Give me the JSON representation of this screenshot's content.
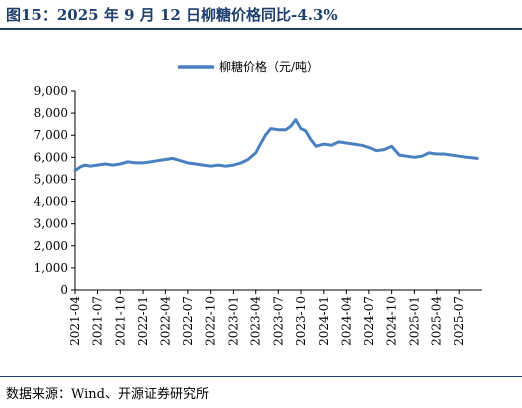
{
  "figure": {
    "title": "图15：2025 年 9 月 12 日柳糖价格同比-4.3%",
    "source": "数据来源：Wind、开源证券研究所"
  },
  "chart_data": {
    "type": "line",
    "title": "",
    "xlabel": "",
    "ylabel": "",
    "ylim": [
      0,
      9000
    ],
    "y_ticks": [
      "0",
      "1,000",
      "2,000",
      "3,000",
      "4,000",
      "5,000",
      "6,000",
      "7,000",
      "8,000",
      "9,000"
    ],
    "x_ticks": [
      "2021-04",
      "2021-07",
      "2021-10",
      "2022-01",
      "2022-04",
      "2022-07",
      "2022-10",
      "2023-01",
      "2023-04",
      "2023-07",
      "2023-10",
      "2024-01",
      "2024-04",
      "2024-07",
      "2024-10",
      "2025-01",
      "2025-04",
      "2025-07"
    ],
    "legend_position": "top-center",
    "grid": false,
    "series": [
      {
        "name": "柳糖价格（元/吨）",
        "color": "#4a7fc1",
        "x": [
          "2021-04-01",
          "2021-04-20",
          "2021-05-10",
          "2021-06-01",
          "2021-07-01",
          "2021-08-01",
          "2021-09-01",
          "2021-10-01",
          "2021-11-01",
          "2021-12-01",
          "2022-01-01",
          "2022-02-01",
          "2022-03-01",
          "2022-04-01",
          "2022-05-01",
          "2022-06-01",
          "2022-07-01",
          "2022-08-01",
          "2022-09-01",
          "2022-10-01",
          "2022-11-01",
          "2022-12-01",
          "2023-01-01",
          "2023-02-01",
          "2023-03-01",
          "2023-04-01",
          "2023-04-20",
          "2023-05-10",
          "2023-06-01",
          "2023-07-01",
          "2023-08-01",
          "2023-08-20",
          "2023-09-10",
          "2023-10-01",
          "2023-10-20",
          "2023-11-10",
          "2023-12-01",
          "2024-01-01",
          "2024-02-01",
          "2024-03-01",
          "2024-04-01",
          "2024-05-01",
          "2024-06-01",
          "2024-07-01",
          "2024-08-01",
          "2024-09-01",
          "2024-10-01",
          "2024-11-01",
          "2024-12-01",
          "2025-01-01",
          "2025-02-01",
          "2025-03-01",
          "2025-04-01",
          "2025-05-01",
          "2025-06-01",
          "2025-07-01",
          "2025-08-01",
          "2025-09-12"
        ],
        "values": [
          5400,
          5550,
          5650,
          5600,
          5650,
          5700,
          5650,
          5700,
          5800,
          5750,
          5750,
          5800,
          5850,
          5900,
          5950,
          5850,
          5750,
          5700,
          5650,
          5600,
          5650,
          5600,
          5650,
          5750,
          5900,
          6200,
          6600,
          7000,
          7300,
          7250,
          7250,
          7400,
          7700,
          7300,
          7200,
          6800,
          6500,
          6600,
          6550,
          6700,
          6650,
          6600,
          6550,
          6450,
          6300,
          6350,
          6500,
          6100,
          6050,
          6000,
          6050,
          6200,
          6150,
          6150,
          6100,
          6050,
          6000,
          5950
        ]
      }
    ]
  }
}
